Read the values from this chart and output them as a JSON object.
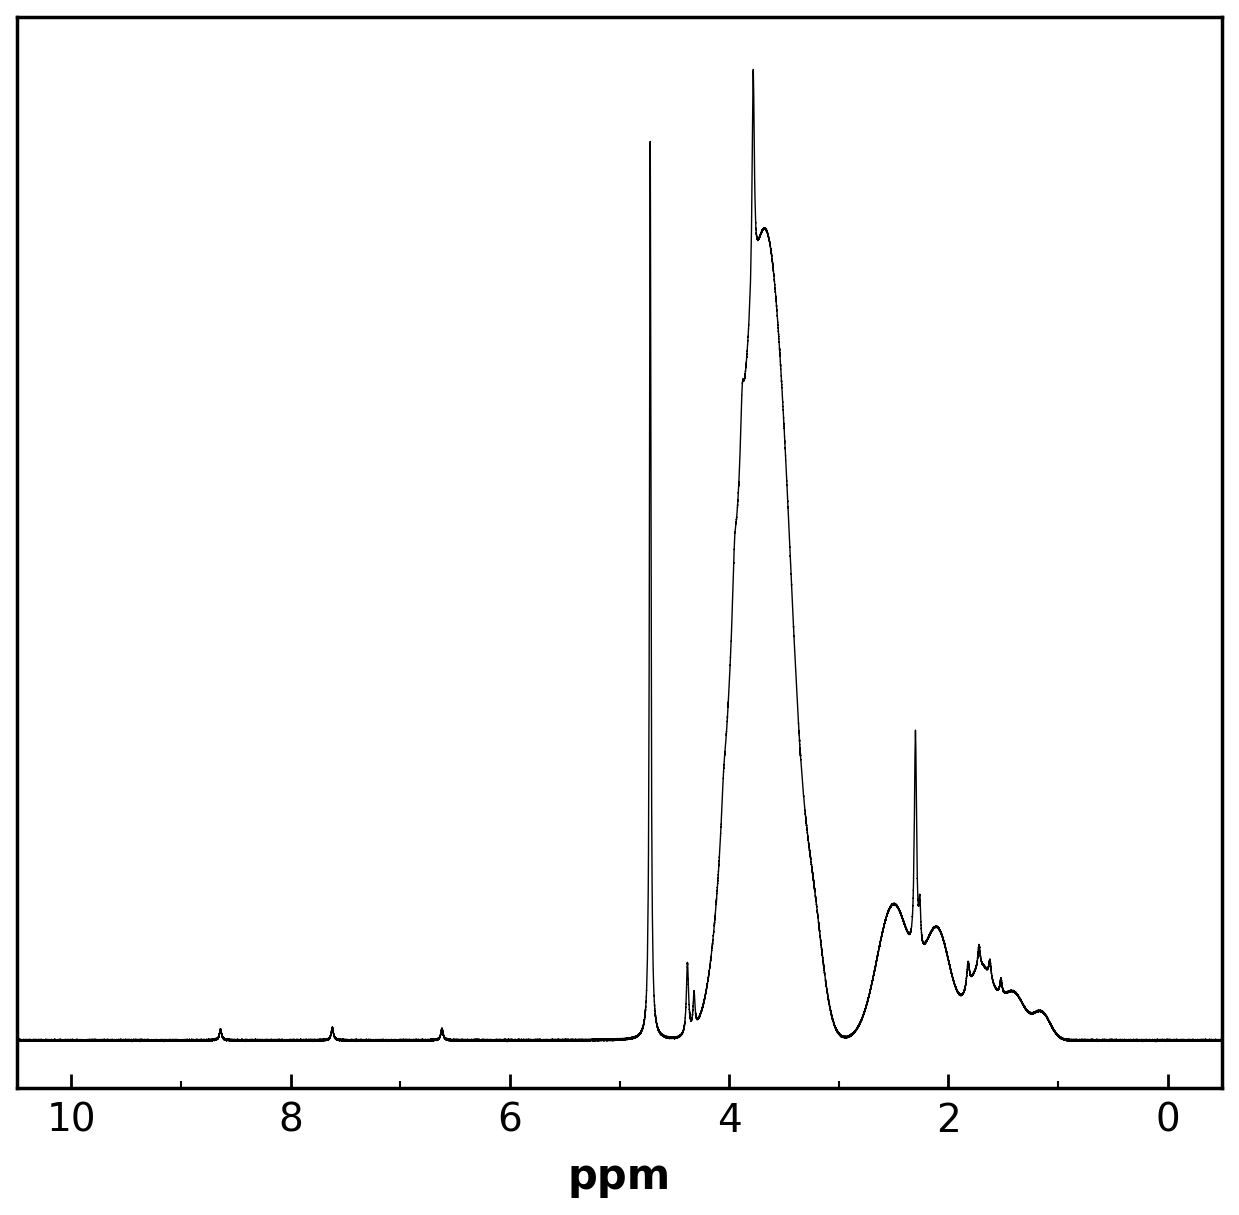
{
  "xlim": [
    10.5,
    -0.5
  ],
  "ylim": [
    -0.015,
    1.0
  ],
  "xlabel": "ppm",
  "xlabel_fontsize": 30,
  "tick_fontsize": 28,
  "background_color": "#ffffff",
  "line_color": "#000000",
  "line_width": 1.0,
  "xticks": [
    10,
    8,
    6,
    4,
    2,
    0
  ],
  "noise_level": 0.004,
  "noise_seed": 42,
  "spine_linewidth": 2.5
}
